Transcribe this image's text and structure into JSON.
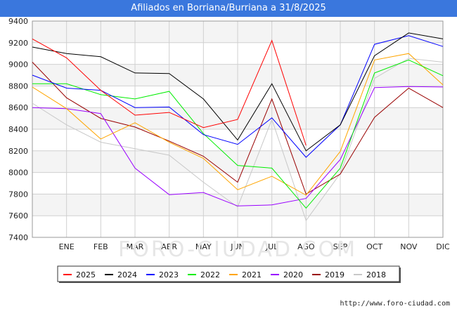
{
  "chart_data": {
    "type": "line",
    "title": "Afiliados en Borriana/Burriana a 31/8/2025",
    "categories": [
      "",
      "ENE",
      "FEB",
      "MAR",
      "ABR",
      "MAY",
      "JUN",
      "JUL",
      "AGO",
      "SEP",
      "OCT",
      "NOV",
      "DIC"
    ],
    "yticks": [
      7400,
      7600,
      7800,
      8000,
      8200,
      8400,
      8600,
      8800,
      9000,
      9200,
      9400
    ],
    "ylim": [
      7400,
      9400
    ],
    "grid": true,
    "legend_position": "bottom",
    "series": [
      {
        "name": "2025",
        "color": "#ff0000",
        "values": [
          9235,
          9060,
          8760,
          8530,
          8555,
          8415,
          8490,
          9220,
          8250,
          null,
          null,
          null,
          null
        ]
      },
      {
        "name": "2024",
        "color": "#000000",
        "values": [
          9160,
          9100,
          9070,
          8920,
          8915,
          8680,
          8300,
          8820,
          8200,
          8440,
          9080,
          9290,
          9235
        ]
      },
      {
        "name": "2023",
        "color": "#0000ff",
        "values": [
          8900,
          8780,
          8760,
          8600,
          8605,
          8350,
          8260,
          8505,
          8140,
          8440,
          9185,
          9265,
          9165
        ]
      },
      {
        "name": "2022",
        "color": "#00ee00",
        "values": [
          8820,
          8820,
          8720,
          8680,
          8750,
          8360,
          8065,
          8040,
          7670,
          8040,
          8920,
          9040,
          8895
        ]
      },
      {
        "name": "2021",
        "color": "#ffa500",
        "values": [
          8790,
          8590,
          8310,
          8460,
          8280,
          8130,
          7840,
          7965,
          7790,
          8195,
          9040,
          9100,
          8810
        ]
      },
      {
        "name": "2020",
        "color": "#9900ff",
        "values": [
          8600,
          8590,
          8545,
          8040,
          7795,
          7815,
          7690,
          7700,
          7760,
          8120,
          8785,
          8795,
          8790
        ]
      },
      {
        "name": "2019",
        "color": "#990000",
        "values": [
          9020,
          8690,
          8500,
          8420,
          8290,
          8150,
          7910,
          8680,
          7800,
          7985,
          8510,
          8780,
          8600
        ]
      },
      {
        "name": "2018",
        "color": "#c8c8c8",
        "values": [
          8640,
          8440,
          8280,
          8220,
          8160,
          7910,
          7680,
          8490,
          7555,
          7990,
          8870,
          9055,
          9020
        ]
      }
    ]
  },
  "watermark": "FORO-CIUDAD.COM",
  "source": "http://www.foro-ciudad.com"
}
